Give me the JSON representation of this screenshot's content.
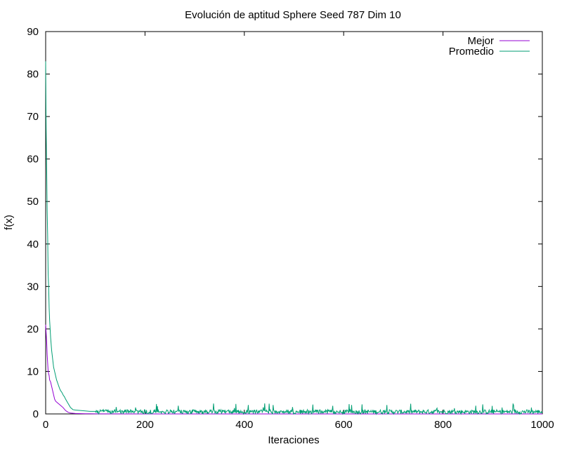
{
  "chart_data": {
    "type": "line",
    "title": "Evolución de aptitud Sphere Seed 787 Dim 10",
    "xlabel": "Iteraciones",
    "ylabel": "f(x)",
    "xlim": [
      0,
      1000
    ],
    "ylim": [
      0,
      90
    ],
    "xticks": [
      0,
      200,
      400,
      600,
      800,
      1000
    ],
    "yticks": [
      0,
      10,
      20,
      30,
      40,
      50,
      60,
      70,
      80,
      90
    ],
    "grid": false,
    "legend_position": "top-right",
    "series": [
      {
        "name": "Mejor",
        "color": "#9400d3",
        "x": [
          0,
          1,
          2,
          3,
          4,
          5,
          6,
          7,
          8,
          10,
          12,
          15,
          18,
          20,
          25,
          30,
          35,
          40,
          45,
          50,
          60,
          80,
          100,
          200,
          300,
          400,
          500,
          600,
          700,
          800,
          900,
          1000
        ],
        "y": [
          21,
          19,
          17,
          14,
          12,
          10,
          9.5,
          9,
          8,
          7.5,
          6.5,
          5,
          3.5,
          3,
          2.5,
          2,
          1.5,
          0.8,
          0.4,
          0.2,
          0.1,
          0.05,
          0.02,
          0.01,
          0.01,
          0.005,
          0.005,
          0.003,
          0.003,
          0.002,
          0.002,
          0.002
        ]
      },
      {
        "name": "Promedio",
        "color": "#009e73",
        "x": [
          0,
          1,
          2,
          3,
          4,
          5,
          6,
          7,
          8,
          10,
          12,
          14,
          16,
          18,
          20,
          22,
          25,
          28,
          30,
          33,
          35,
          38,
          40,
          45,
          50,
          55,
          60,
          70,
          80,
          90,
          100
        ],
        "y": [
          83,
          67,
          58,
          48,
          42,
          33,
          30,
          25,
          22,
          18,
          15,
          13,
          11,
          10,
          9,
          8,
          7,
          6,
          5.5,
          5,
          4.5,
          4,
          3.5,
          2.5,
          1.5,
          1,
          0.9,
          0.8,
          0.7,
          0.6,
          0.6
        ],
        "noise_after": {
          "from": 100,
          "to": 1000,
          "range": [
            0,
            2.5
          ]
        }
      }
    ]
  }
}
